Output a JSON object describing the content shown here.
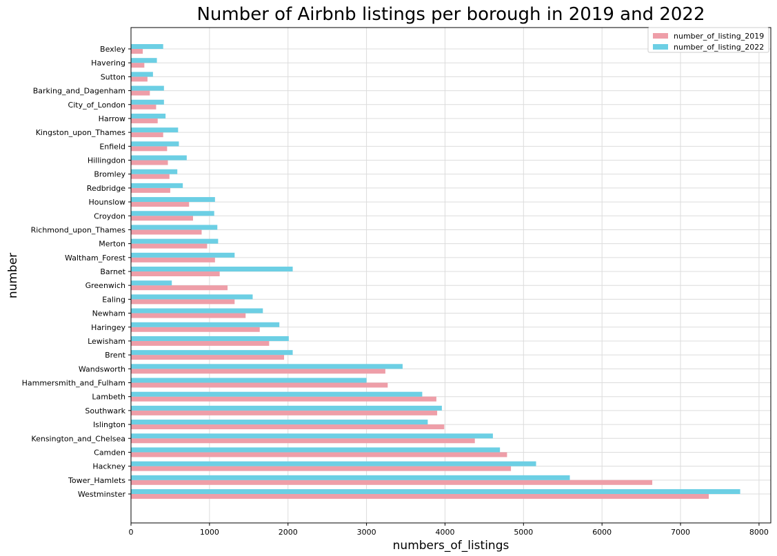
{
  "chart_data": {
    "type": "bar",
    "orientation": "horizontal",
    "title": "Number of Airbnb listings per borough in 2019 and 2022",
    "xlabel": "numbers_of_listings",
    "ylabel": "number",
    "xlim": [
      0,
      8150
    ],
    "xticks": [
      0,
      1000,
      2000,
      3000,
      4000,
      5000,
      6000,
      7000,
      8000
    ],
    "grid": true,
    "legend_position": "top-right",
    "categories": [
      "Westminster",
      "Tower_Hamlets",
      "Hackney",
      "Camden",
      "Kensington_and_Chelsea",
      "Islington",
      "Southwark",
      "Lambeth",
      "Hammersmith_and_Fulham",
      "Wandsworth",
      "Brent",
      "Lewisham",
      "Haringey",
      "Newham",
      "Ealing",
      "Greenwich",
      "Barnet",
      "Waltham_Forest",
      "Merton",
      "Richmond_upon_Thames",
      "Croydon",
      "Hounslow",
      "Redbridge",
      "Bromley",
      "Hillingdon",
      "Enfield",
      "Kingston_upon_Thames",
      "Harrow",
      "City_of_London",
      "Barking_and_Dagenham",
      "Sutton",
      "Havering",
      "Bexley"
    ],
    "series": [
      {
        "name": "number_of_listing_2019",
        "color": "#ee9ea8",
        "values": [
          7360,
          6640,
          4840,
          4790,
          4380,
          3990,
          3900,
          3890,
          3270,
          3240,
          1950,
          1760,
          1640,
          1460,
          1320,
          1230,
          1130,
          1070,
          970,
          900,
          790,
          740,
          500,
          490,
          470,
          460,
          410,
          340,
          320,
          240,
          210,
          170,
          150
        ]
      },
      {
        "name": "number_of_listing_2022",
        "color": "#6ccfe4",
        "values": [
          7760,
          5590,
          5160,
          4700,
          4610,
          3780,
          3960,
          3710,
          3000,
          3460,
          2060,
          2010,
          1890,
          1680,
          1550,
          520,
          2060,
          1320,
          1110,
          1100,
          1060,
          1070,
          660,
          590,
          710,
          610,
          600,
          440,
          420,
          420,
          280,
          330,
          410
        ]
      }
    ]
  }
}
